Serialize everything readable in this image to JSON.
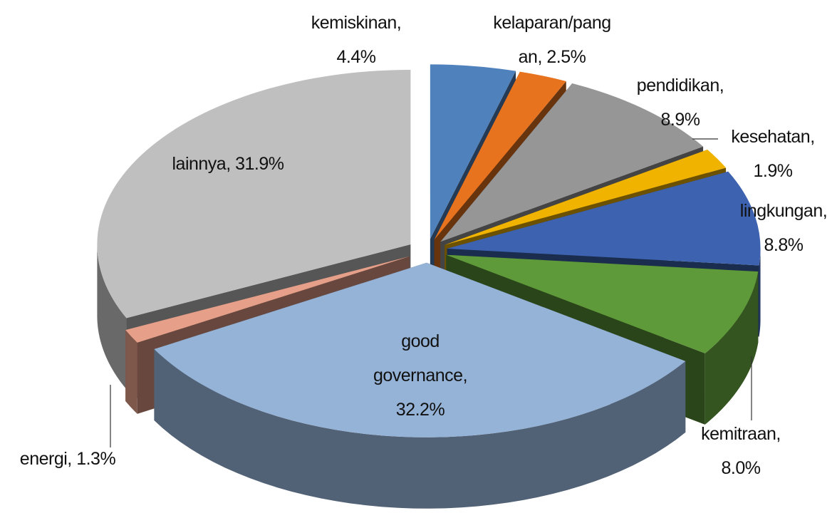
{
  "chart_data": {
    "type": "pie3d",
    "categories": [
      "kemiskinan",
      "kelaparan/pangan",
      "pendidikan",
      "kesehatan",
      "lingkungan",
      "kemitraan",
      "good governance",
      "energi",
      "lainnya"
    ],
    "values": [
      4.4,
      2.5,
      8.9,
      1.9,
      8.8,
      8.0,
      32.2,
      1.3,
      31.9
    ],
    "value_labels": [
      "4.4%",
      "2.5%",
      "8.9%",
      "1.9%",
      "8.8%",
      "8.0%",
      "32.2%",
      "1.3%",
      "31.9%"
    ],
    "separator": ", ",
    "colors": [
      "#4f81bd",
      "#e8731f",
      "#969696",
      "#f0b400",
      "#3d63b0",
      "#5f9a3a",
      "#95b3d7",
      "#e6a08a",
      "#bfbfbf"
    ]
  }
}
